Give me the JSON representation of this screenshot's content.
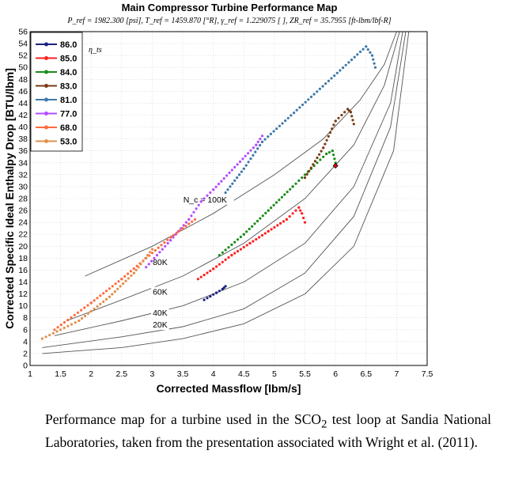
{
  "caption": {
    "part1": "Performance map for a turbine used in the SCO",
    "sub": "2",
    "part2": " test loop at Sandia National Laboratories, taken from the presentation associated with Wright et al. (2011)."
  },
  "chart_data": {
    "type": "scatter",
    "title": "Main Compressor Turbine Performance Map",
    "subtitle": "P_ref = 1982.300 [psi],  T_ref = 1459.870 [°R],  γ_ref = 1.229075 [ ],  ZR_ref = 35.7955 [ft-lbm/lbf-R]",
    "xlabel": "Corrected Massflow [lbm/s]",
    "ylabel": "Corrected Specific Ideal Enthalpy Drop [BTU/lbm]",
    "xlim": [
      1,
      7.5
    ],
    "ylim": [
      0,
      56
    ],
    "x_ticks": [
      "1",
      "1.5",
      "2",
      "2.5",
      "3",
      "3.5",
      "4",
      "4.5",
      "5",
      "5.5",
      "6",
      "6.5",
      "7",
      "7.5"
    ],
    "y_ticks": [
      "0",
      "2",
      "4",
      "6",
      "8",
      "10",
      "12",
      "14",
      "16",
      "18",
      "20",
      "22",
      "24",
      "26",
      "28",
      "30",
      "32",
      "34",
      "36",
      "38",
      "40",
      "42",
      "44",
      "46",
      "48",
      "50",
      "52",
      "54",
      "56"
    ],
    "grid": true,
    "legend_title": "η_ts",
    "legend_position": "top-left",
    "series": [
      {
        "name": "86.0",
        "color": "#1a237e",
        "points": [
          [
            3.85,
            11.0
          ],
          [
            3.95,
            11.6
          ],
          [
            4.05,
            12.2
          ],
          [
            4.15,
            12.8
          ],
          [
            4.2,
            13.3
          ]
        ]
      },
      {
        "name": "85.0",
        "color": "#ff2020",
        "points": [
          [
            3.75,
            14.5
          ],
          [
            4.0,
            16.2
          ],
          [
            4.3,
            18.5
          ],
          [
            4.6,
            20.5
          ],
          [
            4.9,
            22.5
          ],
          [
            5.2,
            24.5
          ],
          [
            5.4,
            26.5
          ],
          [
            5.45,
            25.5
          ],
          [
            5.5,
            24.0
          ]
        ]
      },
      {
        "name": "84.0",
        "color": "#1a8c1a",
        "points": [
          [
            4.1,
            18.5
          ],
          [
            4.5,
            22.0
          ],
          [
            4.9,
            26.0
          ],
          [
            5.3,
            30.0
          ],
          [
            5.6,
            33.0
          ],
          [
            5.85,
            35.5
          ],
          [
            5.95,
            36.0
          ],
          [
            6.0,
            34.0
          ]
        ]
      },
      {
        "name": "83.0",
        "color": "#7a3b14",
        "points": [
          [
            5.5,
            31.5
          ],
          [
            5.8,
            36.5
          ],
          [
            6.0,
            41.0
          ],
          [
            6.2,
            43.0
          ],
          [
            6.25,
            42.5
          ],
          [
            6.3,
            40.5
          ]
        ]
      },
      {
        "name": "81.0",
        "color": "#3f79a8",
        "points": [
          [
            4.2,
            29.0
          ],
          [
            4.5,
            33.0
          ],
          [
            4.8,
            37.5
          ],
          [
            6.5,
            53.5
          ],
          [
            6.6,
            52.0
          ],
          [
            6.65,
            50.0
          ]
        ]
      },
      {
        "name": "77.0",
        "color": "#b44cff",
        "points": [
          [
            2.9,
            16.5
          ],
          [
            3.3,
            21.0
          ],
          [
            3.6,
            24.5
          ],
          [
            3.8,
            27.5
          ],
          [
            4.0,
            29.5
          ],
          [
            4.7,
            37.0
          ],
          [
            4.8,
            38.5
          ]
        ]
      },
      {
        "name": "68.0",
        "color": "#ff6a3d",
        "points": [
          [
            1.4,
            6.0
          ],
          [
            2.0,
            10.5
          ],
          [
            2.5,
            14.5
          ],
          [
            2.9,
            18.0
          ],
          [
            3.3,
            21.5
          ],
          [
            3.7,
            24.5
          ]
        ]
      },
      {
        "name": "53.0",
        "color": "#e0904c",
        "points": [
          [
            1.2,
            4.5
          ],
          [
            1.8,
            7.5
          ],
          [
            2.3,
            11.5
          ],
          [
            2.7,
            15.5
          ],
          [
            3.0,
            19.5
          ]
        ]
      }
    ],
    "speed_lines": [
      {
        "label": "N_c = 100K",
        "points": [
          [
            1.9,
            15.0
          ],
          [
            3.0,
            20.0
          ],
          [
            4.0,
            25.5
          ],
          [
            5.0,
            32.0
          ],
          [
            5.8,
            38.0
          ],
          [
            6.4,
            44.5
          ],
          [
            6.8,
            50.5
          ],
          [
            7.0,
            56.0
          ]
        ]
      },
      {
        "label": "80K",
        "points": [
          [
            1.6,
            7.5
          ],
          [
            2.5,
            11.0
          ],
          [
            3.5,
            15.0
          ],
          [
            4.5,
            20.5
          ],
          [
            5.5,
            28.0
          ],
          [
            6.3,
            37.0
          ],
          [
            6.8,
            47.0
          ],
          [
            7.05,
            56.0
          ]
        ]
      },
      {
        "label": "60K",
        "points": [
          [
            1.4,
            5.0
          ],
          [
            2.5,
            7.5
          ],
          [
            3.5,
            10.0
          ],
          [
            4.5,
            14.0
          ],
          [
            5.5,
            20.5
          ],
          [
            6.3,
            30.0
          ],
          [
            6.9,
            44.0
          ],
          [
            7.1,
            56.0
          ]
        ]
      },
      {
        "label": "40K",
        "points": [
          [
            1.2,
            3.0
          ],
          [
            2.5,
            4.8
          ],
          [
            3.5,
            6.5
          ],
          [
            4.5,
            9.5
          ],
          [
            5.5,
            15.5
          ],
          [
            6.3,
            25.0
          ],
          [
            6.9,
            40.0
          ],
          [
            7.15,
            56.0
          ]
        ]
      },
      {
        "label": "20K",
        "points": [
          [
            1.2,
            2.0
          ],
          [
            2.5,
            3.0
          ],
          [
            3.5,
            4.5
          ],
          [
            4.5,
            7.0
          ],
          [
            5.5,
            12.0
          ],
          [
            6.3,
            20.0
          ],
          [
            6.95,
            36.0
          ],
          [
            7.2,
            56.0
          ]
        ]
      }
    ]
  }
}
